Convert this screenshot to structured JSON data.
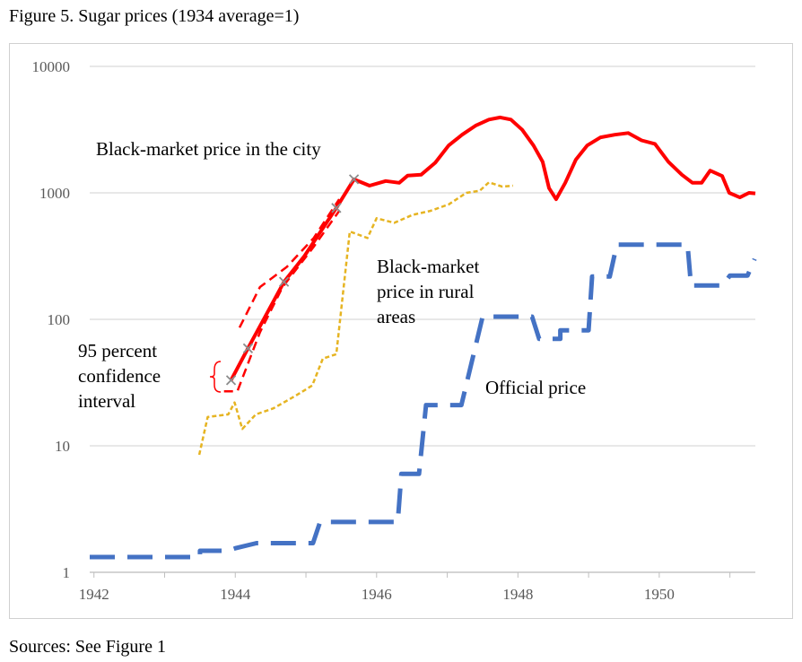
{
  "title": "Figure 5. Sugar prices (1934 average=1)",
  "source": "Sources: See Figure 1",
  "chart_data": {
    "type": "line",
    "log_y": true,
    "grid": true,
    "xlim": [
      1941.94,
      1951.36
    ],
    "xticks": [
      1942,
      1944,
      1946,
      1948,
      1950
    ],
    "xminor_ticks": [
      1943,
      1945,
      1947,
      1949,
      1951
    ],
    "ylim": [
      1,
      10000
    ],
    "yticks": [
      1,
      10,
      100,
      1000,
      10000
    ],
    "series": [
      {
        "color": "#4472c4",
        "style": "long-dash",
        "x": [
          1941.94,
          1943.5,
          1943.5,
          1943.9,
          1944.0,
          1944.3,
          1945.1,
          1945.2,
          1946.3,
          1946.35,
          1946.6,
          1946.7,
          1947.2,
          1947.5,
          1948.2,
          1948.3,
          1948.6,
          1948.6,
          1949.0,
          1949.05,
          1949.3,
          1949.4,
          1950.4,
          1950.45,
          1950.9,
          1951.0,
          1951.25,
          1951.35
        ],
        "values": [
          1.32,
          1.32,
          1.48,
          1.48,
          1.55,
          1.7,
          1.7,
          2.5,
          2.5,
          6,
          6,
          21,
          21,
          105,
          105,
          70,
          70,
          82,
          82,
          218,
          218,
          390,
          390,
          185,
          185,
          222,
          222,
          300
        ]
      },
      {
        "color": "#e6b422",
        "style": "dot",
        "x": [
          1943.49,
          1943.61,
          1943.9,
          1943.99,
          1944.1,
          1944.29,
          1944.54,
          1944.86,
          1945.09,
          1945.24,
          1945.43,
          1945.52,
          1945.62,
          1945.87,
          1946.0,
          1946.25,
          1946.51,
          1946.76,
          1947.02,
          1947.27,
          1947.46,
          1947.59,
          1947.78,
          1947.93
        ],
        "values": [
          8.5,
          16.9,
          17.7,
          22,
          13.6,
          17.7,
          19.8,
          25,
          30,
          49,
          53,
          153,
          495,
          440,
          630,
          580,
          670,
          720,
          810,
          1000,
          1040,
          1210,
          1120,
          1140
        ]
      },
      {
        "color": "#ff0000",
        "style": "dash",
        "x": [
          1944.06,
          1944.35,
          1944.73,
          1945.11,
          1945.47
        ],
        "values": [
          86,
          180,
          260,
          440,
          890
        ]
      },
      {
        "color": "#ff0000",
        "style": "dash",
        "x": [
          1943.84,
          1944.03,
          1944.35,
          1944.67,
          1945.11,
          1945.47
        ],
        "values": [
          27,
          27,
          79,
          180,
          375,
          720
        ]
      },
      {
        "color": "#ff0000",
        "style": "solid",
        "marked_points": [
          0,
          1,
          3,
          5,
          6
        ],
        "x": [
          1943.94,
          1944.18,
          1944.41,
          1944.69,
          1944.98,
          1945.43,
          1945.68,
          1945.9,
          1946.13,
          1946.32,
          1946.44,
          1946.63,
          1946.83,
          1947.02,
          1947.21,
          1947.4,
          1947.59,
          1947.75,
          1947.9,
          1948.06,
          1948.22,
          1948.35,
          1948.44,
          1948.54,
          1948.67,
          1948.82,
          1948.98,
          1949.17,
          1949.37,
          1949.56,
          1949.75,
          1949.94,
          1950.13,
          1950.32,
          1950.47,
          1950.6,
          1950.72,
          1950.89,
          1950.99,
          1951.14,
          1951.27,
          1951.36
        ],
        "values": [
          33,
          59,
          102,
          198,
          318,
          760,
          1280,
          1140,
          1240,
          1200,
          1370,
          1390,
          1730,
          2370,
          2880,
          3400,
          3800,
          3950,
          3800,
          3150,
          2370,
          1760,
          1090,
          890,
          1200,
          1830,
          2370,
          2750,
          2880,
          2970,
          2600,
          2440,
          1760,
          1390,
          1200,
          1200,
          1500,
          1360,
          1000,
          920,
          1000,
          990
        ]
      }
    ],
    "annotations": [
      {
        "lines": [
          "Black-market price in the city"
        ]
      },
      {
        "lines": [
          "Black-market",
          "price in rural",
          "areas"
        ]
      },
      {
        "lines": [
          "Official price"
        ]
      },
      {
        "lines": [
          "95 percent",
          "confidence",
          "interval"
        ]
      }
    ]
  }
}
